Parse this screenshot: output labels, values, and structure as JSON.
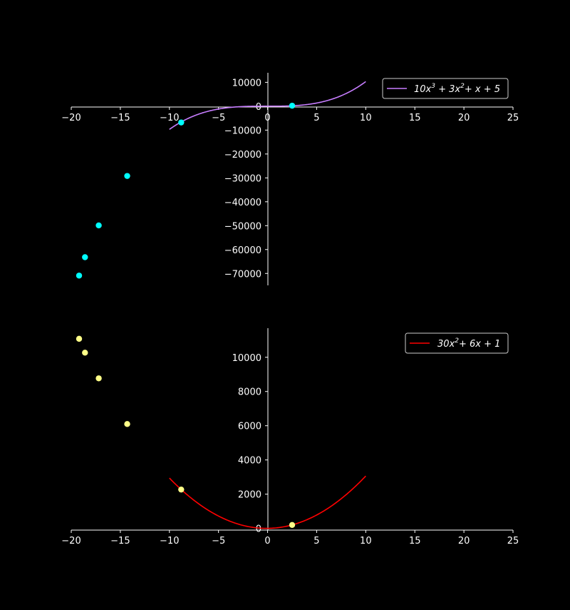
{
  "chart_data": [
    {
      "type": "line",
      "xlim": [
        -20,
        25
      ],
      "ylim": [
        -75000,
        14000
      ],
      "xticks": [
        -20,
        -15,
        -10,
        -5,
        0,
        5,
        10,
        15,
        20,
        25
      ],
      "yticks": [
        -70000,
        -60000,
        -50000,
        -40000,
        -30000,
        -20000,
        -10000,
        0,
        10000
      ],
      "grid": false,
      "legend_position": "top-right",
      "series": [
        {
          "name": "10x^3 + 3x^2 + x + 5",
          "name_parts": {
            "a": "10",
            "b": "3",
            "c": "+ x + 5"
          },
          "kind": "line",
          "color": "#c77dff",
          "function": {
            "coefficients": [
              10,
              3,
              1,
              5
            ]
          },
          "x_range": [
            -10,
            10
          ]
        },
        {
          "kind": "scatter",
          "color": "#00ffff",
          "x": [
            -19.2,
            -18.6,
            -17.2,
            -14.3,
            -8.8,
            2.5
          ],
          "y": [
            -70900,
            -63200,
            -49900,
            -29200,
            -6800,
            220
          ]
        }
      ]
    },
    {
      "type": "line",
      "xlim": [
        -20,
        25
      ],
      "ylim": [
        -100,
        11700
      ],
      "xticks": [
        -20,
        -15,
        -10,
        -5,
        0,
        5,
        10,
        15,
        20,
        25
      ],
      "yticks": [
        0,
        2000,
        4000,
        6000,
        8000,
        10000
      ],
      "grid": false,
      "legend_position": "top-right",
      "series": [
        {
          "name": "30x^2 + 6x + 1",
          "name_parts": {
            "a": "30",
            "c": "+ 6x + 1"
          },
          "kind": "line",
          "color": "#ff0000",
          "function": {
            "coefficients": [
              30,
              6,
              1
            ]
          },
          "x_range": [
            -10,
            10
          ]
        },
        {
          "kind": "scatter",
          "color": "#ffff88",
          "x": [
            -19.2,
            -18.6,
            -17.2,
            -14.3,
            -8.8,
            2.5
          ],
          "y": [
            11080,
            10270,
            8770,
            6100,
            2270,
            200
          ]
        }
      ]
    }
  ]
}
